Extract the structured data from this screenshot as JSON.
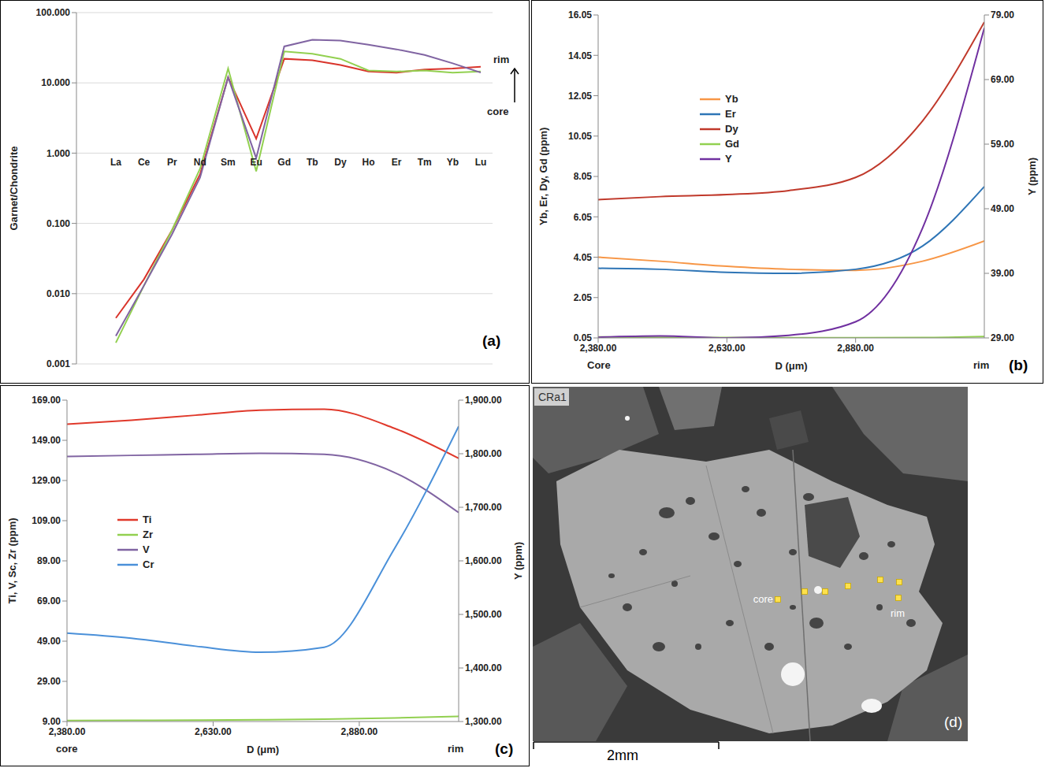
{
  "chart_data": [
    {
      "type": "line",
      "panel": "(a)",
      "y_label": "Garnet/Chondrite",
      "categories": [
        "La",
        "Ce",
        "Pr",
        "Nd",
        "Sm",
        "Eu",
        "Gd",
        "Tb",
        "Dy",
        "Ho",
        "Er",
        "Tm",
        "Yb",
        "Lu"
      ],
      "series": [
        {
          "color": "#d9342b",
          "values": [
            0.0045,
            0.016,
            0.08,
            0.5,
            12,
            1.6,
            22,
            21,
            18,
            14.5,
            14,
            15.5,
            16,
            17
          ]
        },
        {
          "color": "#92d050",
          "values": [
            0.002,
            0.013,
            0.08,
            0.6,
            16,
            0.55,
            28,
            26,
            22,
            15,
            14.5,
            15,
            14,
            14.5
          ]
        },
        {
          "color": "#8064a2",
          "values": [
            0.0025,
            0.013,
            0.07,
            0.45,
            12,
            0.85,
            33,
            41,
            40,
            35,
            30,
            25,
            19,
            14
          ]
        }
      ],
      "ylim": [
        0.001,
        100
      ],
      "yticks": [
        0.001,
        {
          "value": 0.01,
          "label": "0.010"
        },
        {
          "value": 0.1,
          "label": "0.100"
        },
        {
          "value": 1,
          "label": "1.000"
        },
        {
          "value": 10,
          "label": "10.000"
        },
        {
          "value": 100,
          "label": "100.000"
        }
      ],
      "log": "y",
      "grid": true,
      "annotations": [
        "rim",
        "core"
      ]
    },
    {
      "type": "line",
      "panel": "(b)",
      "x_label": "D (μm)",
      "y_label": "Yb, Er, Dy, Gd (ppm)",
      "y2_label": "Y (ppm)",
      "x": [
        2380,
        2500,
        2630,
        2750,
        2880,
        3010,
        3130
      ],
      "series": [
        {
          "name": "Yb",
          "color": "#f79646",
          "values": [
            4.05,
            3.85,
            3.6,
            3.45,
            3.4,
            3.85,
            4.85
          ]
        },
        {
          "name": "Er",
          "color": "#2e75b6",
          "values": [
            3.5,
            3.45,
            3.3,
            3.25,
            3.45,
            4.6,
            7.55
          ]
        },
        {
          "name": "Dy",
          "color": "#c0392b",
          "values": [
            6.9,
            7.05,
            7.15,
            7.35,
            8.0,
            10.8,
            15.7
          ]
        },
        {
          "name": "Gd",
          "color": "#92d050",
          "values": [
            0.1,
            0.08,
            0.07,
            0.06,
            0.06,
            0.07,
            0.12
          ]
        },
        {
          "name": "Y",
          "color": "#7030a0",
          "axis": "y2",
          "values": [
            29.1,
            29.3,
            29.0,
            29.4,
            31.5,
            46,
            77
          ]
        }
      ],
      "xlim": [
        2380,
        3130
      ],
      "xticks": [
        {
          "value": 2380,
          "label": "2,380.00"
        },
        {
          "value": 2630,
          "label": "2,630.00"
        },
        {
          "value": 2880,
          "label": "2,880.00"
        }
      ],
      "ylim": [
        0.05,
        16.05
      ],
      "yticks": [
        0.05,
        2.05,
        4.05,
        6.05,
        8.05,
        10.05,
        12.05,
        14.05,
        16.05
      ],
      "y2lim": [
        29,
        79
      ],
      "y2ticks": [
        {
          "value": 29,
          "label": "29.00"
        },
        {
          "value": 39,
          "label": "39.00"
        },
        {
          "value": 49,
          "label": "49.00"
        },
        {
          "value": 59,
          "label": "59.00"
        },
        {
          "value": 69,
          "label": "69.00"
        },
        {
          "value": 79,
          "label": "79.00"
        }
      ],
      "legend": "upper left",
      "annotations": [
        "Core",
        "rim"
      ]
    },
    {
      "type": "line",
      "panel": "(c)",
      "x_label": "D (μm)",
      "y_label": "Ti, V, Sc, Zr (ppm)",
      "y2_label": "Y (ppm)",
      "x": [
        2380,
        2490,
        2600,
        2710,
        2820,
        2940,
        3050
      ],
      "series": [
        {
          "name": "Ti",
          "color": "#e0392b",
          "values": [
            157,
            159,
            161.5,
            164,
            164.5,
            155,
            140
          ]
        },
        {
          "name": "Zr",
          "color": "#92d050",
          "values": [
            9.5,
            9.6,
            9.7,
            9.9,
            10.2,
            10.8,
            11.6
          ]
        },
        {
          "name": "V",
          "color": "#8064a2",
          "values": [
            141,
            141.5,
            142,
            142.5,
            142,
            133,
            113
          ]
        },
        {
          "name": "Cr",
          "color": "#4a90d9",
          "values": [
            53,
            50.5,
            46.5,
            43.5,
            46,
            95,
            156
          ]
        }
      ],
      "xlim": [
        2380,
        3050
      ],
      "xticks": [
        {
          "value": 2380,
          "label": "2,380.00"
        },
        {
          "value": 2630,
          "label": "2,630.00"
        },
        {
          "value": 2880,
          "label": "2,880.00"
        }
      ],
      "ylim": [
        9,
        169
      ],
      "yticks": [
        {
          "value": 9,
          "label": "9.00"
        },
        {
          "value": 29,
          "label": "29.00"
        },
        {
          "value": 49,
          "label": "49.00"
        },
        {
          "value": 69,
          "label": "69.00"
        },
        {
          "value": 89,
          "label": "89.00"
        },
        {
          "value": 109,
          "label": "109.00"
        },
        {
          "value": 129,
          "label": "129.00"
        },
        {
          "value": 149,
          "label": "149.00"
        },
        {
          "value": 169,
          "label": "169.00"
        }
      ],
      "y2lim": [
        1300,
        1900
      ],
      "y2ticks": [
        {
          "value": 1300,
          "label": "1,300.00"
        },
        {
          "value": 1400,
          "label": "1,400.00"
        },
        {
          "value": 1500,
          "label": "1,500.00"
        },
        {
          "value": 1600,
          "label": "1,600.00"
        },
        {
          "value": 1700,
          "label": "1,700.00"
        },
        {
          "value": 1800,
          "label": "1,800.00"
        },
        {
          "value": 1900,
          "label": "1,900.00"
        }
      ],
      "legend": "center left",
      "annotations": [
        "core",
        "rim"
      ]
    }
  ],
  "image": {
    "label": "CRa1",
    "annotations": [
      "core",
      "rim"
    ],
    "scale_bar": "2mm",
    "panel": "(d)"
  }
}
